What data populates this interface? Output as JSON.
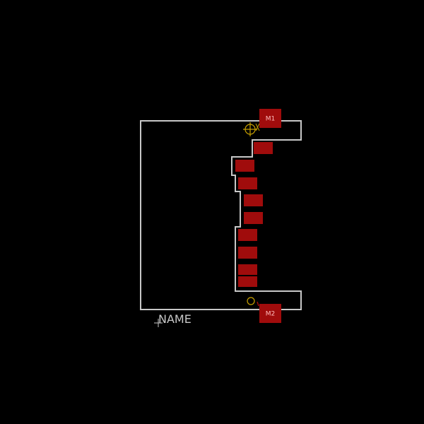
{
  "colors": {
    "background": "#000000",
    "outline": "#c8c8c8",
    "pad": "#a00c0c",
    "pad_label": "#ffbdbd",
    "origin_marker": "#c8a000",
    "name_text": "#c8c8c8"
  },
  "pads": {
    "m1_label": "M1",
    "m2_label": "M2",
    "signal_pad_count": 9
  },
  "name_label": "NAME",
  "markers": {
    "origin_icon": "crosshair-circle-icon",
    "pin1_icon": "pin1-circle-icon",
    "text_anchor_icon": "plus-cross-icon"
  }
}
